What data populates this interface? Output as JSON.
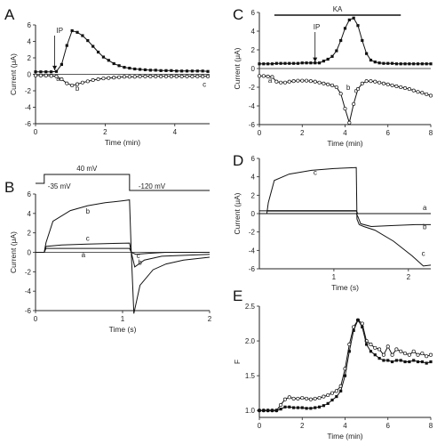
{
  "chart_data": [
    {
      "panel": "A",
      "type": "line",
      "xlabel": "Time (min)",
      "ylabel": "Current (μA)",
      "xlim": [
        0,
        5
      ],
      "ylim": [
        -6,
        6
      ],
      "xticks": [
        "0",
        "2",
        "4"
      ],
      "yticks": [
        "-6",
        "-4",
        "-2",
        "0",
        "2",
        "4",
        "6"
      ],
      "annotations": [
        "IP",
        "a",
        "b",
        "c"
      ],
      "series": [
        {
          "marker": "filled-square",
          "x": [
            0.0,
            0.15,
            0.3,
            0.45,
            0.6,
            0.75,
            0.9,
            1.05,
            1.2,
            1.35,
            1.5,
            1.65,
            1.8,
            1.95,
            2.1,
            2.25,
            2.4,
            2.55,
            2.7,
            2.85,
            3.0,
            3.15,
            3.3,
            3.45,
            3.6,
            3.75,
            3.9,
            4.05,
            4.2,
            4.35,
            4.5,
            4.65,
            4.8,
            4.95
          ],
          "y": [
            0.3,
            0.3,
            0.3,
            0.3,
            0.35,
            1.2,
            3.5,
            5.3,
            5.1,
            4.7,
            4.1,
            3.4,
            2.7,
            2.1,
            1.7,
            1.3,
            1.05,
            0.85,
            0.75,
            0.65,
            0.6,
            0.55,
            0.5,
            0.5,
            0.45,
            0.45,
            0.45,
            0.4,
            0.4,
            0.4,
            0.4,
            0.4,
            0.4,
            0.35
          ]
        },
        {
          "marker": "open-circle",
          "x": [
            0.0,
            0.15,
            0.3,
            0.45,
            0.6,
            0.75,
            0.9,
            1.05,
            1.2,
            1.35,
            1.5,
            1.65,
            1.8,
            1.95,
            2.1,
            2.25,
            2.4,
            2.55,
            2.7,
            2.85,
            3.0,
            3.15,
            3.3,
            3.45,
            3.6,
            3.75,
            3.9,
            4.05,
            4.2,
            4.35,
            4.5,
            4.65,
            4.8,
            4.95
          ],
          "y": [
            -0.15,
            -0.15,
            -0.15,
            -0.2,
            -0.25,
            -0.6,
            -1.1,
            -1.35,
            -1.2,
            -1.0,
            -0.85,
            -0.7,
            -0.6,
            -0.5,
            -0.45,
            -0.4,
            -0.35,
            -0.3,
            -0.3,
            -0.3,
            -0.25,
            -0.25,
            -0.25,
            -0.25,
            -0.25,
            -0.25,
            -0.25,
            -0.25,
            -0.25,
            -0.25,
            -0.25,
            -0.25,
            -0.25,
            -0.25
          ]
        }
      ]
    },
    {
      "panel": "B",
      "type": "line",
      "xlabel": "Time (s)",
      "ylabel": "Current (μA)",
      "xlim": [
        0,
        2
      ],
      "ylim": [
        -6,
        6
      ],
      "xticks": [
        "0",
        "1",
        "2"
      ],
      "yticks": [
        "-6",
        "-4",
        "-2",
        "0",
        "2",
        "4",
        "6"
      ],
      "protocol_labels": [
        "40 mV",
        "-35 mV",
        "-120 mV"
      ],
      "annotations": [
        "a",
        "b",
        "c",
        "b",
        "c"
      ],
      "series": [
        {
          "label": "a",
          "x": [
            0.0,
            0.1,
            0.12,
            1.08,
            1.1,
            1.15,
            1.3,
            1.5,
            2.0
          ],
          "y": [
            0,
            0,
            0.4,
            0.4,
            0,
            -0.2,
            -0.1,
            0,
            0
          ]
        },
        {
          "label": "b",
          "x": [
            0.0,
            0.1,
            0.12,
            0.2,
            0.4,
            0.6,
            0.8,
            1.0,
            1.08,
            1.1,
            1.13,
            1.2,
            1.35,
            1.5,
            1.7,
            2.0
          ],
          "y": [
            0,
            0,
            1.0,
            3.2,
            4.3,
            4.8,
            5.1,
            5.3,
            5.4,
            0,
            -6.3,
            -3.4,
            -1.8,
            -1.2,
            -0.8,
            -0.5
          ]
        },
        {
          "label": "c",
          "x": [
            0.0,
            0.1,
            0.12,
            0.3,
            0.6,
            1.08,
            1.1,
            1.14,
            1.25,
            1.45,
            2.0
          ],
          "y": [
            0,
            0,
            0.6,
            0.75,
            0.85,
            0.95,
            0,
            -1.5,
            -0.8,
            -0.4,
            -0.2
          ]
        }
      ]
    },
    {
      "panel": "C",
      "type": "line",
      "xlabel": "Time (min)",
      "ylabel": "Current (μA)",
      "xlim": [
        0,
        8
      ],
      "ylim": [
        -6,
        6
      ],
      "xticks": [
        "0",
        "2",
        "4",
        "6",
        "8"
      ],
      "yticks": [
        "-6",
        "-4",
        "-2",
        "0",
        "2",
        "4",
        "6"
      ],
      "bar_label": "KA",
      "annotations": [
        "IP",
        "a",
        "b",
        "c"
      ],
      "series": [
        {
          "marker": "filled-square",
          "x": [
            0.0,
            0.2,
            0.4,
            0.6,
            0.8,
            1.0,
            1.2,
            1.4,
            1.6,
            1.8,
            2.0,
            2.2,
            2.4,
            2.6,
            2.8,
            3.0,
            3.2,
            3.4,
            3.6,
            3.8,
            4.0,
            4.2,
            4.4,
            4.6,
            4.8,
            5.0,
            5.2,
            5.4,
            5.6,
            5.8,
            6.0,
            6.2,
            6.4,
            6.6,
            6.8,
            7.0,
            7.2,
            7.4,
            7.6,
            7.8,
            8.0
          ],
          "y": [
            0.5,
            0.5,
            0.5,
            0.5,
            0.55,
            0.55,
            0.55,
            0.55,
            0.55,
            0.55,
            0.6,
            0.6,
            0.6,
            0.6,
            0.6,
            0.8,
            1.0,
            1.3,
            1.9,
            3.0,
            4.3,
            5.2,
            5.4,
            4.6,
            3.0,
            1.6,
            0.9,
            0.7,
            0.6,
            0.55,
            0.55,
            0.55,
            0.5,
            0.5,
            0.5,
            0.5,
            0.5,
            0.5,
            0.5,
            0.5,
            0.5
          ]
        },
        {
          "marker": "open-circle",
          "x": [
            0.0,
            0.2,
            0.4,
            0.6,
            0.8,
            1.0,
            1.2,
            1.4,
            1.6,
            1.8,
            2.0,
            2.2,
            2.4,
            2.6,
            2.8,
            3.0,
            3.2,
            3.4,
            3.6,
            3.8,
            4.0,
            4.2,
            4.4,
            4.6,
            4.8,
            5.0,
            5.2,
            5.4,
            5.6,
            5.8,
            6.0,
            6.2,
            6.4,
            6.6,
            6.8,
            7.0,
            7.2,
            7.4,
            7.6,
            7.8,
            8.0
          ],
          "y": [
            -0.8,
            -0.8,
            -0.85,
            -0.9,
            -1.4,
            -1.5,
            -1.5,
            -1.4,
            -1.35,
            -1.3,
            -1.3,
            -1.3,
            -1.35,
            -1.4,
            -1.5,
            -1.6,
            -1.7,
            -1.8,
            -2.0,
            -2.7,
            -4.3,
            -5.8,
            -3.8,
            -2.2,
            -1.6,
            -1.35,
            -1.35,
            -1.4,
            -1.5,
            -1.6,
            -1.7,
            -1.8,
            -1.9,
            -2.0,
            -2.1,
            -2.2,
            -2.35,
            -2.5,
            -2.6,
            -2.75,
            -2.9
          ]
        }
      ]
    },
    {
      "panel": "D",
      "type": "line",
      "xlabel": "Time (s)",
      "ylabel": "Current (μA)",
      "xlim": [
        0,
        2.3
      ],
      "ylim": [
        -6,
        6
      ],
      "xticks": [
        "1",
        "2"
      ],
      "yticks": [
        "-6",
        "-4",
        "-2",
        "0",
        "2",
        "4",
        "6"
      ],
      "annotations": [
        "a",
        "b",
        "c"
      ],
      "series": [
        {
          "label": "a",
          "x": [
            0.0,
            0.1,
            1.3,
            1.32,
            2.3
          ],
          "y": [
            0.3,
            0.3,
            0.3,
            0,
            0
          ]
        },
        {
          "label": "b",
          "x": [
            0.0,
            0.1,
            1.3,
            1.32,
            1.36,
            1.5,
            1.8,
            2.1,
            2.3
          ],
          "y": [
            0,
            0,
            0,
            -0.3,
            -1.1,
            -1.4,
            -1.3,
            -1.2,
            -1.2
          ]
        },
        {
          "label": "c",
          "x": [
            0.0,
            0.1,
            0.12,
            0.2,
            0.4,
            0.7,
            1.0,
            1.3,
            1.31,
            1.34,
            1.4,
            1.55,
            1.8,
            2.05,
            2.2,
            2.3
          ],
          "y": [
            0,
            0,
            1.2,
            3.6,
            4.3,
            4.7,
            4.9,
            5.0,
            -0.6,
            -1.2,
            -1.4,
            -1.8,
            -3.0,
            -4.6,
            -5.7,
            -5.6
          ]
        }
      ]
    },
    {
      "panel": "E",
      "type": "line",
      "xlabel": "Time (min)",
      "ylabel": "F",
      "xlim": [
        0,
        8
      ],
      "ylim": [
        0.9,
        2.5
      ],
      "xticks": [
        "0",
        "2",
        "4",
        "6",
        "8"
      ],
      "yticks": [
        "1.0",
        "1.5",
        "2.0",
        "2.5"
      ],
      "series": [
        {
          "marker": "open-circle",
          "x": [
            0.0,
            0.2,
            0.4,
            0.6,
            0.8,
            1.0,
            1.2,
            1.4,
            1.6,
            1.8,
            2.0,
            2.2,
            2.4,
            2.6,
            2.8,
            3.0,
            3.2,
            3.4,
            3.6,
            3.8,
            4.0,
            4.2,
            4.4,
            4.6,
            4.8,
            5.0,
            5.2,
            5.4,
            5.6,
            5.8,
            6.0,
            6.2,
            6.4,
            6.6,
            6.8,
            7.0,
            7.2,
            7.4,
            7.6,
            7.8,
            8.0
          ],
          "y": [
            1.0,
            1.0,
            1.0,
            1.0,
            1.0,
            1.08,
            1.16,
            1.19,
            1.17,
            1.17,
            1.18,
            1.17,
            1.16,
            1.17,
            1.18,
            1.2,
            1.22,
            1.25,
            1.28,
            1.35,
            1.6,
            1.95,
            2.2,
            2.3,
            2.25,
            2.0,
            1.95,
            1.9,
            1.88,
            1.8,
            1.92,
            1.8,
            1.88,
            1.85,
            1.82,
            1.8,
            1.85,
            1.8,
            1.82,
            1.78,
            1.8
          ]
        },
        {
          "marker": "filled-square",
          "x": [
            0.0,
            0.2,
            0.4,
            0.6,
            0.8,
            1.0,
            1.2,
            1.4,
            1.6,
            1.8,
            2.0,
            2.2,
            2.4,
            2.6,
            2.8,
            3.0,
            3.2,
            3.4,
            3.6,
            3.8,
            4.0,
            4.2,
            4.4,
            4.6,
            4.8,
            5.0,
            5.2,
            5.4,
            5.6,
            5.8,
            6.0,
            6.2,
            6.4,
            6.6,
            6.8,
            7.0,
            7.2,
            7.4,
            7.6,
            7.8,
            8.0
          ],
          "y": [
            1.0,
            1.0,
            1.0,
            1.0,
            1.0,
            1.02,
            1.05,
            1.05,
            1.04,
            1.04,
            1.04,
            1.03,
            1.03,
            1.04,
            1.05,
            1.07,
            1.1,
            1.15,
            1.2,
            1.28,
            1.5,
            1.85,
            2.15,
            2.3,
            2.2,
            1.95,
            1.85,
            1.8,
            1.75,
            1.72,
            1.72,
            1.7,
            1.72,
            1.72,
            1.7,
            1.7,
            1.72,
            1.7,
            1.7,
            1.68,
            1.7
          ]
        }
      ]
    }
  ]
}
